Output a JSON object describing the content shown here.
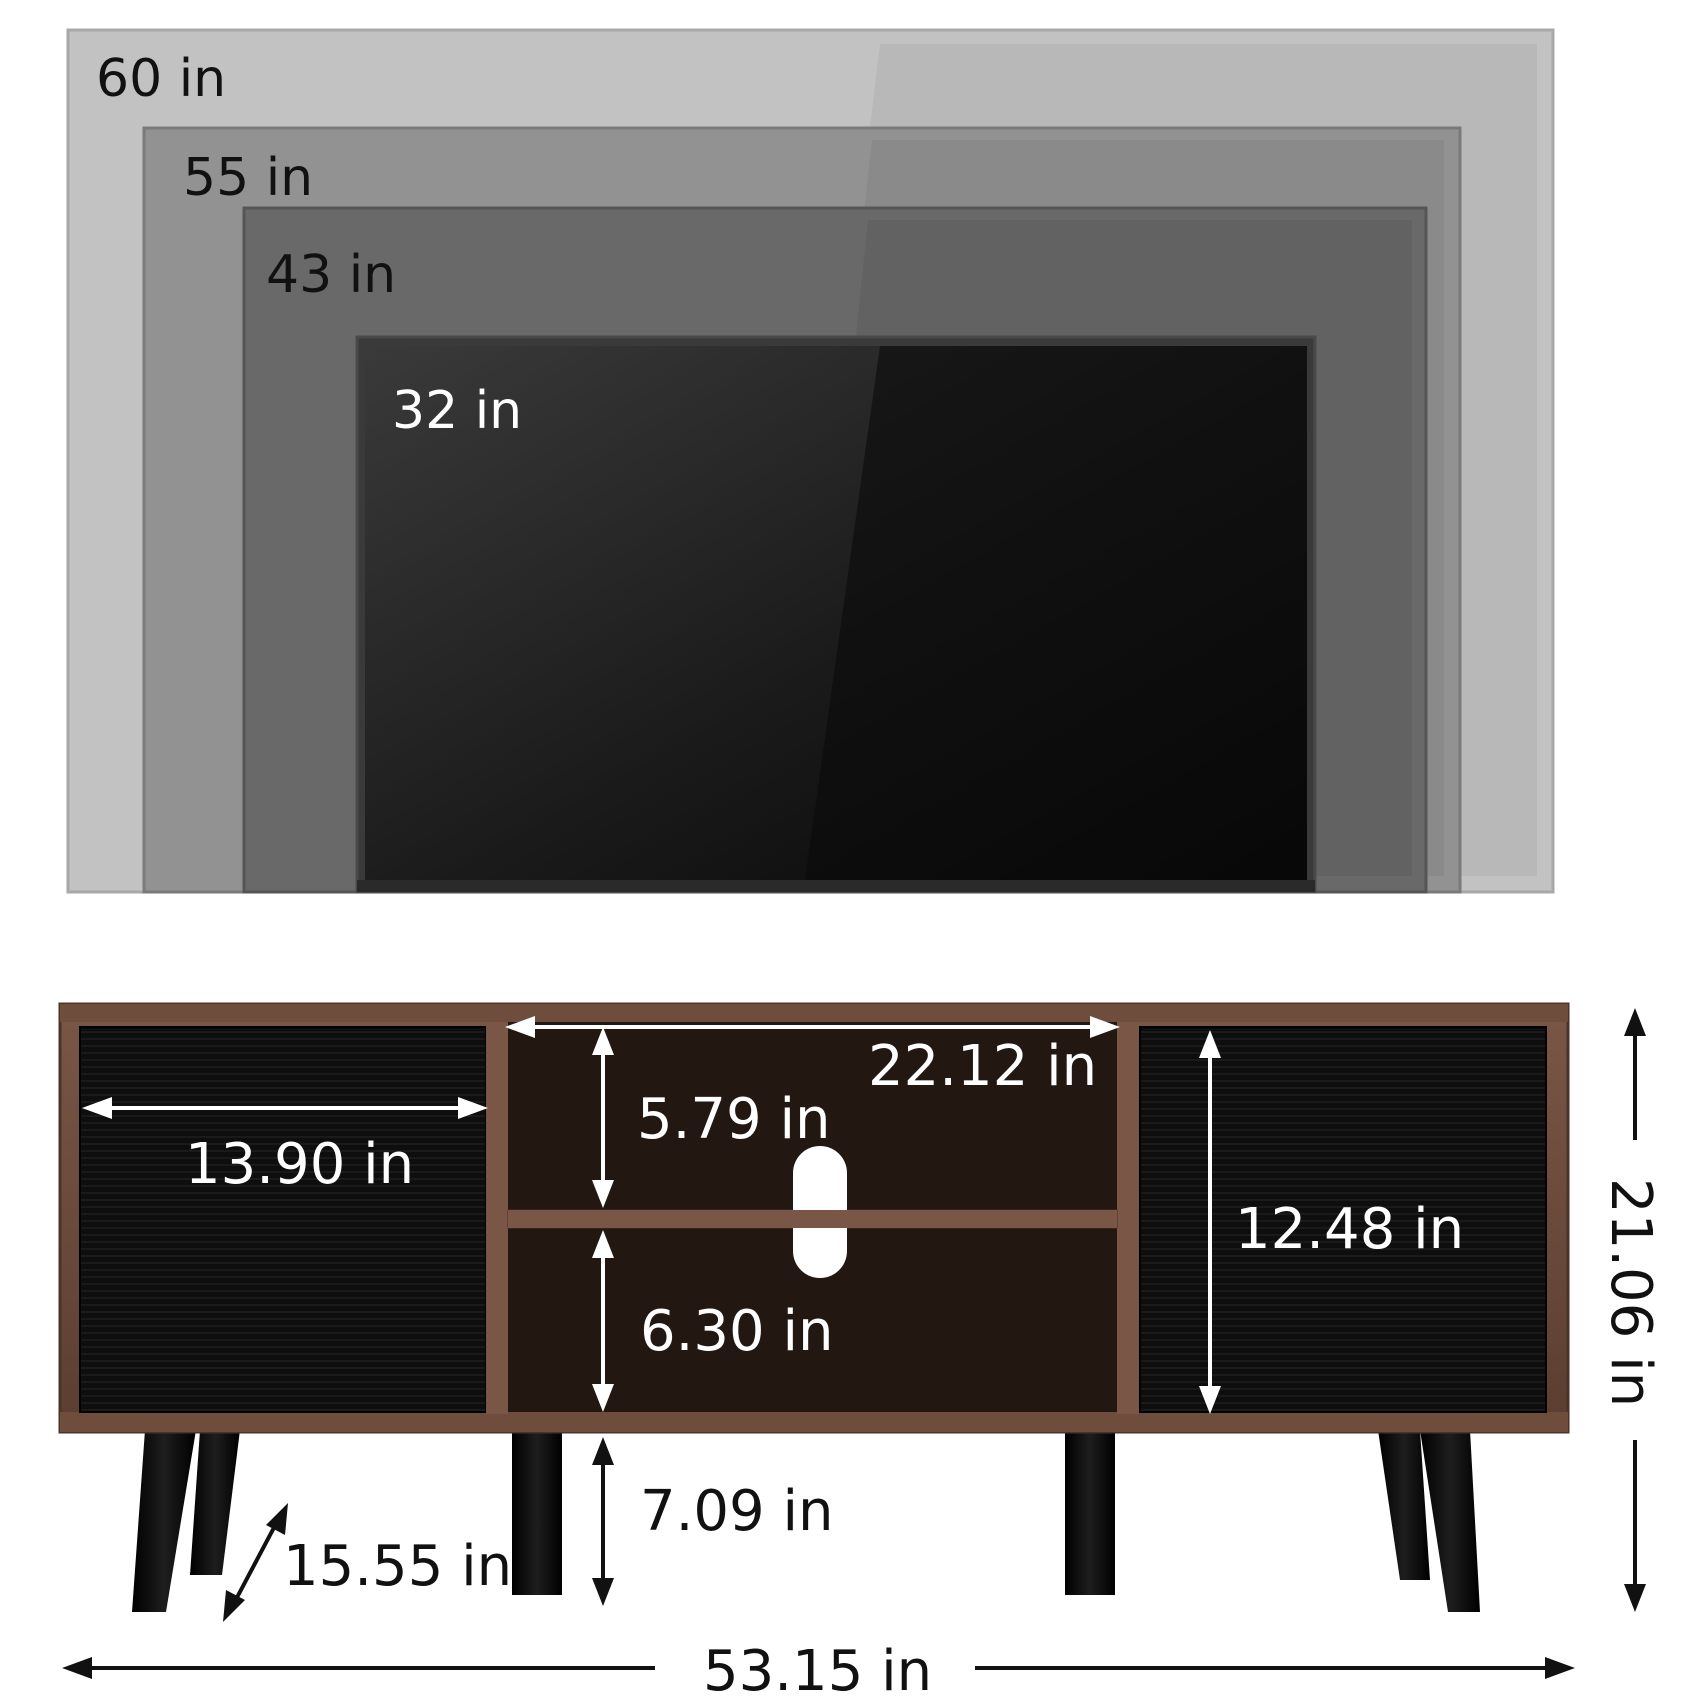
{
  "tv_sizes": {
    "size_60": "60 in",
    "size_55": "55 in",
    "size_43": "43 in",
    "size_32": "32 in"
  },
  "dimensions": {
    "overall_width": "53.15 in",
    "overall_height": "21.06 in",
    "depth": "15.55 in",
    "leg_height": "7.09 in",
    "cabinet_door_width": "13.90 in",
    "cabinet_door_height": "12.48 in",
    "center_opening_width": "22.12 in",
    "upper_shelf_height": "5.79 in",
    "lower_shelf_height": "6.30 in"
  },
  "colors": {
    "wood_frame": "#6b4a3a",
    "door_panel": "#0f0f0f",
    "tv_screen": "#101010",
    "arrow_dark": "#111111",
    "arrow_light": "#ffffff"
  }
}
